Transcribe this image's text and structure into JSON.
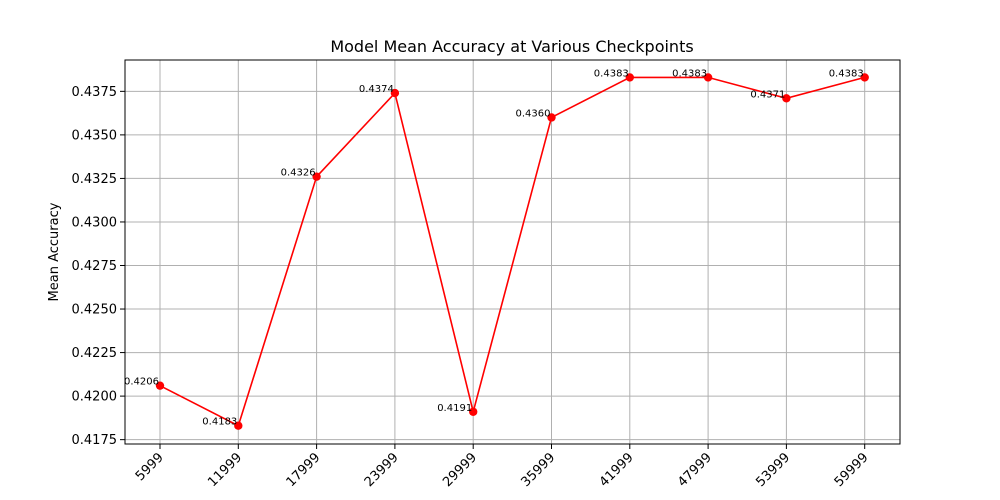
{
  "chart_data": {
    "type": "line",
    "title": "Model Mean Accuracy at Various Checkpoints",
    "xlabel": "",
    "ylabel": "Mean Accuracy",
    "categories": [
      "5999",
      "11999",
      "17999",
      "23999",
      "29999",
      "35999",
      "41999",
      "47999",
      "53999",
      "59999"
    ],
    "series": [
      {
        "values": [
          0.4206,
          0.4183,
          0.4326,
          0.4374,
          0.4191,
          0.436,
          0.4383,
          0.4383,
          0.4371,
          0.4383
        ],
        "labels": [
          "0.4206",
          "0.4183",
          "0.4326",
          "0.4374",
          "0.4191",
          "0.4360",
          "0.4383",
          "0.4383",
          "0.4371",
          "0.4383"
        ],
        "color": "#ff0000",
        "marker": "circle"
      }
    ],
    "ylim": [
      0.41725,
      0.4393
    ],
    "yticks": [
      0.4175,
      0.42,
      0.4225,
      0.425,
      0.4275,
      0.43,
      0.4325,
      0.435,
      0.4375
    ],
    "ytick_labels": [
      "0.4175",
      "0.4200",
      "0.4225",
      "0.4250",
      "0.4275",
      "0.4300",
      "0.4325",
      "0.4350",
      "0.4375"
    ],
    "grid": true,
    "legend": "none",
    "xtick_rotation_deg": 45
  }
}
